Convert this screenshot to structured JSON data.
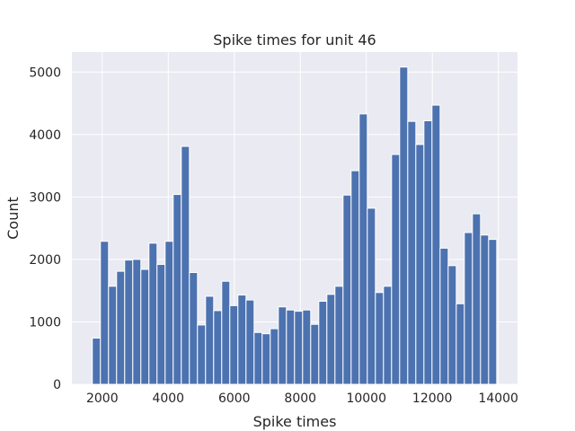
{
  "chart_data": {
    "type": "bar",
    "title": "Spike times for unit 46",
    "xlabel": "Spike times",
    "ylabel": "Count",
    "xlim": [
      1080,
      14580
    ],
    "ylim": [
      0,
      5320
    ],
    "xticks": [
      2000,
      4000,
      6000,
      8000,
      10000,
      12000,
      14000
    ],
    "xtick_labels": [
      "2000",
      "4000",
      "6000",
      "8000",
      "10000",
      "12000",
      "14000"
    ],
    "yticks": [
      0,
      1000,
      2000,
      3000,
      4000,
      5000
    ],
    "ytick_labels": [
      "0",
      "1000",
      "2000",
      "3000",
      "4000",
      "5000"
    ],
    "grid": true,
    "bin_edges": [
      1700,
      1945,
      2190,
      2435,
      2680,
      2925,
      3170,
      3415,
      3660,
      3905,
      4150,
      4395,
      4640,
      4885,
      5130,
      5375,
      5620,
      5865,
      6110,
      6355,
      6600,
      6845,
      7090,
      7335,
      7580,
      7825,
      8070,
      8315,
      8560,
      8805,
      9050,
      9295,
      9540,
      9785,
      10030,
      10275,
      10520,
      10765,
      11010,
      11255,
      11500,
      11745,
      11990,
      12235,
      12480,
      12725,
      12970,
      13215,
      13460,
      13705,
      13950
    ],
    "values": [
      740,
      2290,
      1570,
      1810,
      1990,
      2000,
      1840,
      2260,
      1920,
      2290,
      3040,
      3810,
      1790,
      950,
      1410,
      1180,
      1650,
      1260,
      1430,
      1350,
      830,
      810,
      890,
      1240,
      1190,
      1170,
      1190,
      960,
      1330,
      1440,
      1570,
      3030,
      3420,
      4330,
      2820,
      1470,
      1570,
      3680,
      5080,
      4210,
      3840,
      4220,
      4470,
      2180,
      1900,
      1290,
      2430,
      2730,
      2390,
      2320
    ]
  },
  "colors": {
    "bar": "#4c72b0",
    "plot_background": "#eaeaf2",
    "grid": "#ffffff"
  }
}
